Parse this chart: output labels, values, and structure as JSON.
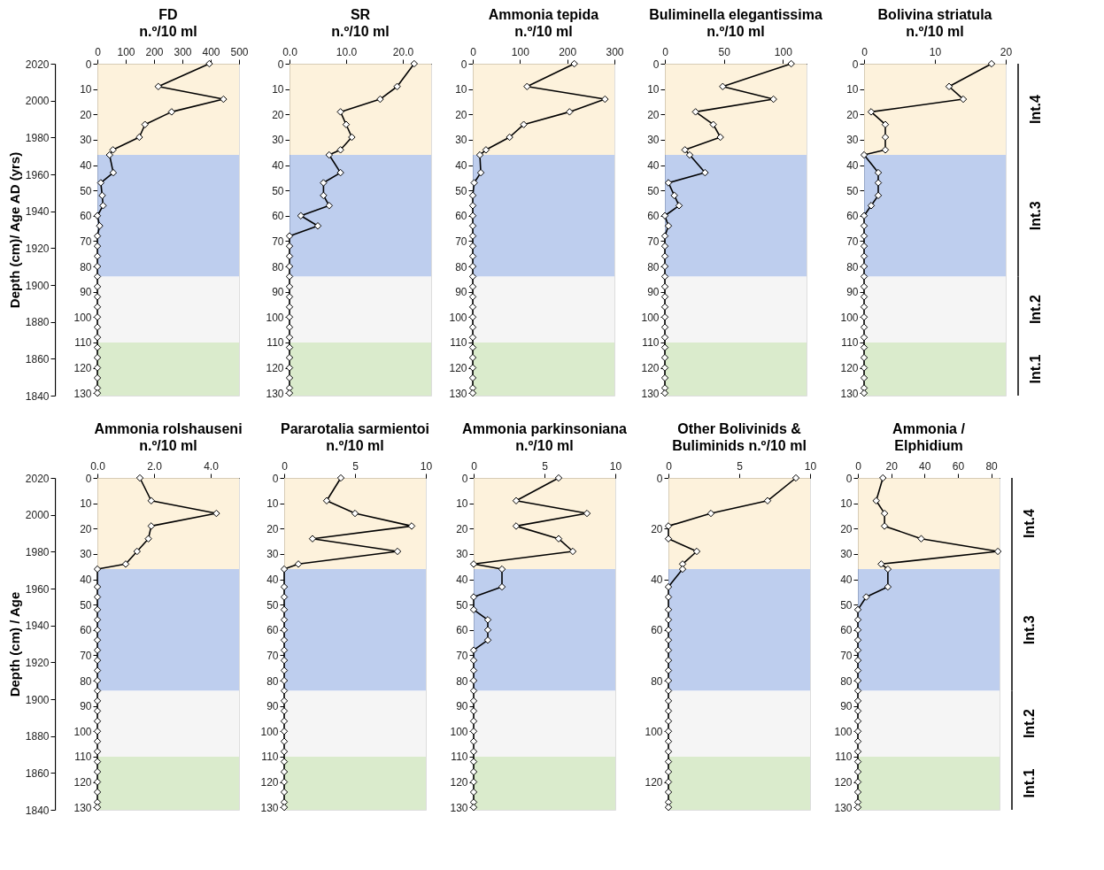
{
  "chart_data": [
    {
      "type": "line",
      "orientation": "horizontal",
      "title": "FD",
      "subtitle": "n.º/10 ml",
      "y2label": "Depth (cm)/ Age AD (yrs)",
      "marker": "diamond",
      "line_style": "solid",
      "grid": false,
      "x": [
        0,
        9,
        14,
        19,
        24,
        29,
        34,
        36,
        43,
        47,
        52,
        56,
        60,
        64,
        68,
        72,
        76,
        80,
        84,
        88,
        92,
        96,
        100,
        104,
        108,
        112,
        116,
        120,
        124,
        128,
        130
      ],
      "series": [
        {
          "color": "#000000",
          "values": [
            395,
            215,
            445,
            262,
            168,
            148,
            55,
            43,
            56,
            12,
            17,
            20,
            0,
            8,
            0,
            0,
            0,
            0,
            0,
            0,
            0,
            0,
            0,
            0,
            0,
            0,
            0,
            0,
            0,
            0,
            0
          ]
        }
      ],
      "xlim": [
        0,
        500
      ],
      "xticks": [
        0,
        100,
        200,
        300,
        400,
        500
      ],
      "ylim": [
        131,
        0
      ],
      "yticks": [
        0,
        10,
        20,
        30,
        40,
        50,
        60,
        70,
        80,
        90,
        100,
        110,
        120,
        130
      ],
      "y2lim": [
        1840,
        2020
      ],
      "y2ticks": [
        1840,
        1860,
        1880,
        1900,
        1920,
        1940,
        1960,
        1980,
        2000,
        2020
      ],
      "bands": [
        {
          "axis": "y",
          "from": 0,
          "to": 36,
          "color": "#fdf0d6"
        },
        {
          "axis": "y",
          "from": 36,
          "to": 84,
          "color": "#b3c6eb"
        },
        {
          "axis": "y",
          "from": 84,
          "to": 110,
          "color": "#f3f3f3"
        },
        {
          "axis": "y",
          "from": 110,
          "to": 131,
          "color": "#d3e7c3"
        }
      ]
    },
    {
      "type": "line",
      "orientation": "horizontal",
      "title": "SR",
      "subtitle": "n.º/10 ml",
      "marker": "diamond",
      "line_style": "solid",
      "grid": false,
      "x": [
        0,
        9,
        14,
        19,
        24,
        29,
        34,
        36,
        43,
        47,
        52,
        56,
        60,
        64,
        68,
        72,
        76,
        80,
        84,
        88,
        92,
        96,
        100,
        104,
        108,
        112,
        116,
        120,
        124,
        128,
        130
      ],
      "series": [
        {
          "color": "#000000",
          "values": [
            22,
            19,
            16,
            9,
            10,
            11,
            9,
            7,
            9,
            6,
            6,
            7,
            2,
            5,
            0,
            0,
            0,
            0,
            0,
            0,
            0,
            0,
            0,
            0,
            0,
            0,
            0,
            0,
            0,
            0,
            0
          ]
        }
      ],
      "xlim": [
        0,
        25
      ],
      "xticks": [
        {
          "value": 0,
          "label": "0.0"
        },
        {
          "value": 10,
          "label": "10.0"
        },
        {
          "value": 20,
          "label": "20.0"
        }
      ],
      "ylim": [
        131,
        0
      ],
      "yticks": [
        0,
        10,
        20,
        30,
        40,
        50,
        60,
        70,
        80,
        90,
        100,
        110,
        120,
        130
      ],
      "bands": [
        {
          "axis": "y",
          "from": 0,
          "to": 36,
          "color": "#fdf0d6"
        },
        {
          "axis": "y",
          "from": 36,
          "to": 84,
          "color": "#b3c6eb"
        },
        {
          "axis": "y",
          "from": 84,
          "to": 110,
          "color": "#f3f3f3"
        },
        {
          "axis": "y",
          "from": 110,
          "to": 131,
          "color": "#d3e7c3"
        }
      ]
    },
    {
      "type": "line",
      "orientation": "horizontal",
      "title": "Ammonia tepida",
      "subtitle": "n.º/10 ml",
      "marker": "diamond",
      "line_style": "solid",
      "grid": false,
      "x": [
        0,
        9,
        14,
        19,
        24,
        29,
        34,
        36,
        43,
        47,
        52,
        56,
        60,
        64,
        68,
        72,
        76,
        80,
        84,
        88,
        92,
        96,
        100,
        104,
        108,
        112,
        116,
        120,
        124,
        128,
        130
      ],
      "series": [
        {
          "color": "#000000",
          "values": [
            215,
            115,
            280,
            205,
            108,
            78,
            28,
            15,
            17,
            3,
            0,
            0,
            0,
            0,
            0,
            0,
            0,
            0,
            0,
            0,
            0,
            0,
            0,
            0,
            0,
            0,
            0,
            0,
            0,
            0,
            0
          ]
        }
      ],
      "xlim": [
        0,
        300
      ],
      "xticks": [
        0,
        100,
        200,
        300
      ],
      "ylim": [
        131,
        0
      ],
      "yticks": [
        0,
        10,
        20,
        30,
        40,
        50,
        60,
        70,
        80,
        90,
        100,
        110,
        120,
        130
      ],
      "bands": [
        {
          "axis": "y",
          "from": 0,
          "to": 36,
          "color": "#fdf0d6"
        },
        {
          "axis": "y",
          "from": 36,
          "to": 84,
          "color": "#b3c6eb"
        },
        {
          "axis": "y",
          "from": 84,
          "to": 110,
          "color": "#f3f3f3"
        },
        {
          "axis": "y",
          "from": 110,
          "to": 131,
          "color": "#d3e7c3"
        }
      ]
    },
    {
      "type": "line",
      "orientation": "horizontal",
      "title": "Buliminella elegantissima",
      "subtitle": "n.º/10 ml",
      "marker": "diamond",
      "line_style": "solid",
      "grid": false,
      "x": [
        0,
        9,
        14,
        19,
        24,
        29,
        34,
        36,
        43,
        47,
        52,
        56,
        60,
        64,
        68,
        72,
        76,
        80,
        84,
        88,
        92,
        96,
        100,
        104,
        108,
        112,
        116,
        120,
        124,
        128,
        130
      ],
      "series": [
        {
          "color": "#000000",
          "values": [
            107,
            49,
            92,
            26,
            41,
            47,
            17,
            21,
            34,
            3,
            8,
            12,
            0,
            3,
            0,
            0,
            0,
            0,
            0,
            0,
            0,
            0,
            0,
            0,
            0,
            0,
            0,
            0,
            0,
            0,
            0
          ]
        }
      ],
      "xlim": [
        0,
        120
      ],
      "xticks": [
        0,
        50,
        100
      ],
      "ylim": [
        131,
        0
      ],
      "yticks": [
        0,
        10,
        20,
        30,
        40,
        50,
        60,
        70,
        80,
        90,
        100,
        110,
        120,
        130
      ],
      "bands": [
        {
          "axis": "y",
          "from": 0,
          "to": 36,
          "color": "#fdf0d6"
        },
        {
          "axis": "y",
          "from": 36,
          "to": 84,
          "color": "#b3c6eb"
        },
        {
          "axis": "y",
          "from": 84,
          "to": 110,
          "color": "#f3f3f3"
        },
        {
          "axis": "y",
          "from": 110,
          "to": 131,
          "color": "#d3e7c3"
        }
      ]
    },
    {
      "type": "line",
      "orientation": "horizontal",
      "title": "Bolivina striatula",
      "subtitle": "n.º/10 ml",
      "marker": "diamond",
      "line_style": "solid",
      "grid": false,
      "x": [
        0,
        9,
        14,
        19,
        24,
        29,
        34,
        36,
        43,
        47,
        52,
        56,
        60,
        64,
        68,
        72,
        76,
        80,
        84,
        88,
        92,
        96,
        100,
        104,
        108,
        112,
        116,
        120,
        124,
        128,
        130
      ],
      "series": [
        {
          "color": "#000000",
          "values": [
            18,
            12,
            14,
            1,
            3,
            3,
            3,
            0,
            2,
            2,
            2,
            1,
            0,
            0,
            0,
            0,
            0,
            0,
            0,
            0,
            0,
            0,
            0,
            0,
            0,
            0,
            0,
            0,
            0,
            0,
            0
          ]
        }
      ],
      "xlim": [
        0,
        20
      ],
      "xticks": [
        0,
        10,
        20
      ],
      "ylim": [
        131,
        0
      ],
      "yticks": [
        0,
        10,
        20,
        30,
        40,
        50,
        60,
        70,
        80,
        90,
        100,
        110,
        120,
        130
      ],
      "bands": [
        {
          "axis": "y",
          "from": 0,
          "to": 36,
          "color": "#fdf0d6",
          "label": "Int.4"
        },
        {
          "axis": "y",
          "from": 36,
          "to": 84,
          "color": "#b3c6eb",
          "label": "Int.3"
        },
        {
          "axis": "y",
          "from": 84,
          "to": 110,
          "color": "#f3f3f3",
          "label": "Int.2"
        },
        {
          "axis": "y",
          "from": 110,
          "to": 131,
          "color": "#d3e7c3",
          "label": "Int.1"
        }
      ]
    },
    {
      "type": "line",
      "orientation": "horizontal",
      "title": "Ammonia rolshauseni",
      "subtitle": "n.º/10 ml",
      "y2label": "Depth (cm) / Age",
      "marker": "diamond",
      "line_style": "solid",
      "grid": false,
      "x": [
        0,
        9,
        14,
        19,
        24,
        29,
        34,
        36,
        43,
        47,
        52,
        56,
        60,
        64,
        68,
        72,
        76,
        80,
        84,
        88,
        92,
        96,
        100,
        104,
        108,
        112,
        116,
        120,
        124,
        128,
        130
      ],
      "series": [
        {
          "color": "#000000",
          "values": [
            1.5,
            1.9,
            4.2,
            1.9,
            1.8,
            1.4,
            1.0,
            0,
            0,
            0,
            0,
            0,
            0,
            0,
            0,
            0,
            0,
            0,
            0,
            0,
            0,
            0,
            0,
            0,
            0,
            0,
            0,
            0,
            0,
            0,
            0
          ]
        }
      ],
      "xlim": [
        0,
        5
      ],
      "xticks": [
        {
          "value": 0,
          "label": "0.0"
        },
        {
          "value": 2,
          "label": "2.0"
        },
        {
          "value": 4,
          "label": "4.0"
        }
      ],
      "ylim": [
        131,
        0
      ],
      "yticks": [
        0,
        10,
        20,
        30,
        40,
        50,
        60,
        70,
        80,
        90,
        100,
        110,
        120,
        130
      ],
      "y2lim": [
        1840,
        2020
      ],
      "y2ticks": [
        1840,
        1860,
        1880,
        1900,
        1920,
        1940,
        1960,
        1980,
        2000,
        2020
      ],
      "bands": [
        {
          "axis": "y",
          "from": 0,
          "to": 36,
          "color": "#fdf0d6"
        },
        {
          "axis": "y",
          "from": 36,
          "to": 84,
          "color": "#b3c6eb"
        },
        {
          "axis": "y",
          "from": 84,
          "to": 110,
          "color": "#f3f3f3"
        },
        {
          "axis": "y",
          "from": 110,
          "to": 131,
          "color": "#d3e7c3"
        }
      ]
    },
    {
      "type": "line",
      "orientation": "horizontal",
      "title": "Pararotalia sarmientoi",
      "subtitle": "n.º/10 ml",
      "marker": "diamond",
      "line_style": "solid",
      "grid": false,
      "x": [
        0,
        9,
        14,
        19,
        24,
        29,
        34,
        36,
        43,
        47,
        52,
        56,
        60,
        64,
        68,
        72,
        76,
        80,
        84,
        88,
        92,
        96,
        100,
        104,
        108,
        112,
        116,
        120,
        124,
        128,
        130
      ],
      "series": [
        {
          "color": "#000000",
          "values": [
            4,
            3,
            5,
            9,
            2,
            8,
            1,
            0,
            0,
            0,
            0,
            0,
            0,
            0,
            0,
            0,
            0,
            0,
            0,
            0,
            0,
            0,
            0,
            0,
            0,
            0,
            0,
            0,
            0,
            0,
            0
          ]
        }
      ],
      "xlim": [
        0,
        10
      ],
      "xticks": [
        0,
        5,
        10
      ],
      "ylim": [
        131,
        0
      ],
      "yticks": [
        0,
        10,
        20,
        30,
        40,
        50,
        60,
        70,
        80,
        90,
        100,
        110,
        120,
        130
      ],
      "bands": [
        {
          "axis": "y",
          "from": 0,
          "to": 36,
          "color": "#fdf0d6"
        },
        {
          "axis": "y",
          "from": 36,
          "to": 84,
          "color": "#b3c6eb"
        },
        {
          "axis": "y",
          "from": 84,
          "to": 110,
          "color": "#f3f3f3"
        },
        {
          "axis": "y",
          "from": 110,
          "to": 131,
          "color": "#d3e7c3"
        }
      ]
    },
    {
      "type": "line",
      "orientation": "horizontal",
      "title": "Ammonia parkinsoniana",
      "subtitle": "n.º/10 ml",
      "marker": "diamond",
      "line_style": "solid",
      "grid": false,
      "x": [
        0,
        9,
        14,
        19,
        24,
        29,
        34,
        36,
        43,
        47,
        52,
        56,
        60,
        64,
        68,
        72,
        76,
        80,
        84,
        88,
        92,
        96,
        100,
        104,
        108,
        112,
        116,
        120,
        124,
        128,
        130
      ],
      "series": [
        {
          "color": "#000000",
          "values": [
            6,
            3,
            8,
            3,
            6,
            7,
            0,
            2,
            2,
            0,
            0,
            1,
            1,
            1,
            0,
            0,
            0,
            0,
            0,
            0,
            0,
            0,
            0,
            0,
            0,
            0,
            0,
            0,
            0,
            0,
            0
          ]
        }
      ],
      "xlim": [
        0,
        10
      ],
      "xticks": [
        0,
        5,
        10
      ],
      "ylim": [
        131,
        0
      ],
      "yticks": [
        0,
        10,
        20,
        30,
        40,
        50,
        60,
        70,
        80,
        90,
        100,
        110,
        120,
        130
      ],
      "bands": [
        {
          "axis": "y",
          "from": 0,
          "to": 36,
          "color": "#fdf0d6"
        },
        {
          "axis": "y",
          "from": 36,
          "to": 84,
          "color": "#b3c6eb"
        },
        {
          "axis": "y",
          "from": 84,
          "to": 110,
          "color": "#f3f3f3"
        },
        {
          "axis": "y",
          "from": 110,
          "to": 131,
          "color": "#d3e7c3"
        }
      ]
    },
    {
      "type": "line",
      "orientation": "horizontal",
      "title": "Other Bolivinids &",
      "subtitle": "Buliminids  n.º/10 ml",
      "marker": "diamond",
      "line_style": "solid",
      "grid": false,
      "x": [
        0,
        9,
        14,
        19,
        24,
        29,
        34,
        36,
        43,
        47,
        52,
        56,
        60,
        64,
        68,
        72,
        76,
        80,
        84,
        88,
        92,
        96,
        100,
        104,
        108,
        112,
        116,
        120,
        124,
        128,
        130
      ],
      "series": [
        {
          "color": "#000000",
          "values": [
            9,
            7,
            3,
            0,
            0,
            2,
            1,
            1,
            0,
            0,
            0,
            0,
            0,
            0,
            0,
            0,
            0,
            0,
            0,
            0,
            0,
            0,
            0,
            0,
            0,
            0,
            0,
            0,
            0,
            0,
            0
          ]
        }
      ],
      "xlim": [
        0,
        10
      ],
      "xticks": [
        0,
        5,
        10
      ],
      "ylim": [
        131,
        0
      ],
      "yticks": [
        0,
        20,
        40,
        60,
        80,
        100,
        120
      ],
      "bands": [
        {
          "axis": "y",
          "from": 0,
          "to": 36,
          "color": "#fdf0d6"
        },
        {
          "axis": "y",
          "from": 36,
          "to": 84,
          "color": "#b3c6eb"
        },
        {
          "axis": "y",
          "from": 84,
          "to": 110,
          "color": "#f3f3f3"
        },
        {
          "axis": "y",
          "from": 110,
          "to": 131,
          "color": "#d3e7c3"
        }
      ]
    },
    {
      "type": "line",
      "orientation": "horizontal",
      "title": "Ammonia /",
      "subtitle": "Elphidium",
      "marker": "diamond",
      "line_style": "solid",
      "grid": false,
      "x": [
        0,
        9,
        14,
        19,
        24,
        29,
        34,
        36,
        43,
        47,
        52,
        56,
        60,
        64,
        68,
        72,
        76,
        80,
        84,
        88,
        92,
        96,
        100,
        104,
        108,
        112,
        116,
        120,
        124,
        128,
        130
      ],
      "series": [
        {
          "color": "#000000",
          "values": [
            15,
            11,
            16,
            16,
            38,
            84,
            14,
            18,
            18,
            5,
            0,
            0,
            0,
            0,
            0,
            0,
            0,
            0,
            0,
            0,
            0,
            0,
            0,
            0,
            0,
            0,
            0,
            0,
            0,
            0,
            0
          ]
        }
      ],
      "xlim": [
        0,
        85
      ],
      "xticks": [
        0,
        20,
        40,
        60,
        80
      ],
      "ylim": [
        131,
        0
      ],
      "yticks": [
        0,
        10,
        20,
        30,
        40,
        50,
        60,
        70,
        80,
        90,
        100,
        110,
        120,
        130
      ],
      "bands": [
        {
          "axis": "y",
          "from": 0,
          "to": 36,
          "color": "#fdf0d6",
          "label": "Int.4"
        },
        {
          "axis": "y",
          "from": 36,
          "to": 84,
          "color": "#b3c6eb",
          "label": "Int.3"
        },
        {
          "axis": "y",
          "from": 84,
          "to": 110,
          "color": "#f3f3f3",
          "label": "Int.2"
        },
        {
          "axis": "y",
          "from": 110,
          "to": 131,
          "color": "#d3e7c3",
          "label": "Int.1"
        }
      ]
    }
  ]
}
